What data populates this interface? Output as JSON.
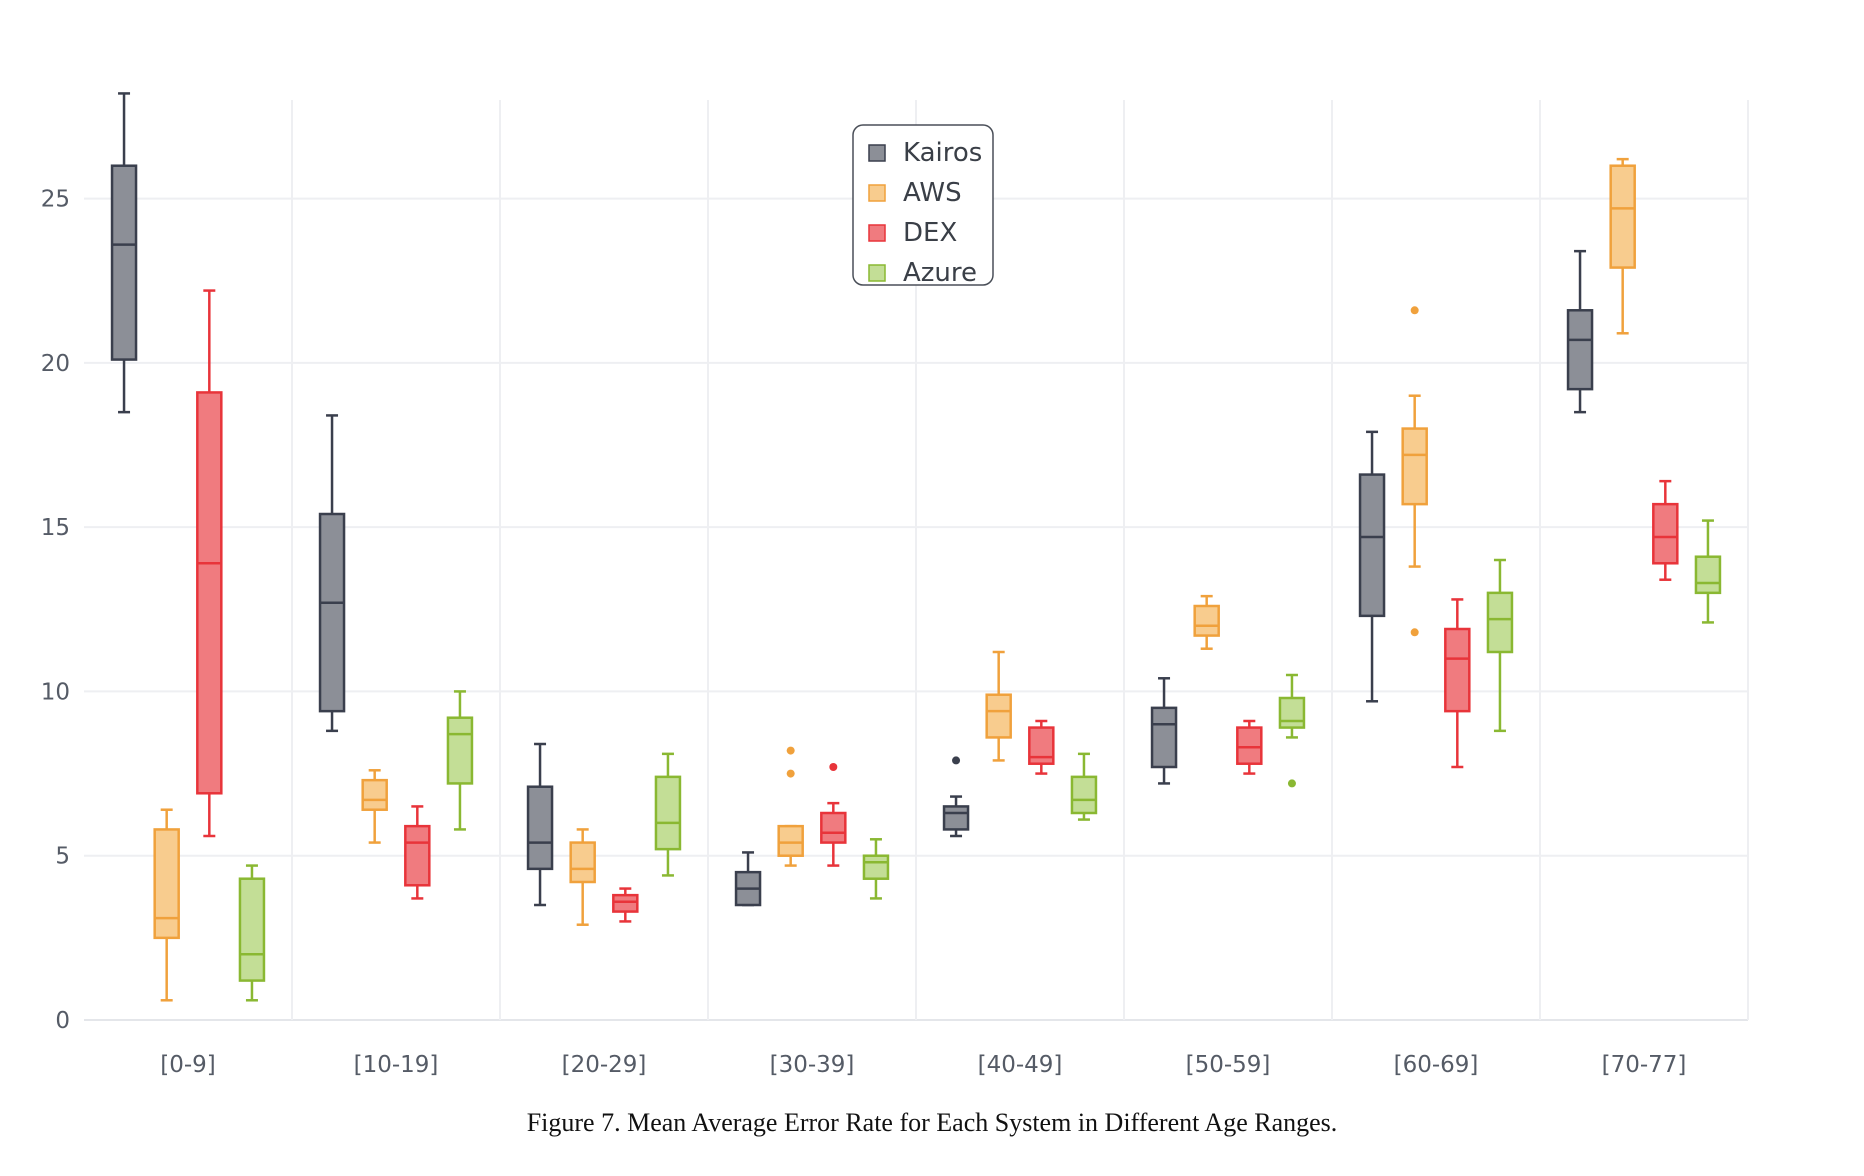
{
  "caption": "Figure 7. Mean Average Error Rate for Each System in Different Age Ranges.",
  "chart_data": {
    "type": "box",
    "title": "",
    "xlabel": "",
    "ylabel": "",
    "ylim": [
      0,
      28
    ],
    "yticks": [
      0,
      5,
      10,
      15,
      20,
      25
    ],
    "grid": true,
    "legend_position": "top-center",
    "categories": [
      "[0-9]",
      "[10-19]",
      "[20-29]",
      "[30-39]",
      "[40-49]",
      "[50-59]",
      "[60-69]",
      "[70-77]"
    ],
    "series": [
      {
        "name": "Kairos",
        "color": "#3a3f4d",
        "fill": "#8c8f97",
        "boxes": [
          {
            "min": 18.5,
            "q1": 20.1,
            "median": 23.6,
            "q3": 26.0,
            "max": 28.2,
            "outliers": []
          },
          {
            "min": 8.8,
            "q1": 9.4,
            "median": 12.7,
            "q3": 15.4,
            "max": 18.4,
            "outliers": []
          },
          {
            "min": 3.5,
            "q1": 4.6,
            "median": 5.4,
            "q3": 7.1,
            "max": 8.4,
            "outliers": []
          },
          {
            "min": 3.5,
            "q1": 3.5,
            "median": 4.0,
            "q3": 4.5,
            "max": 5.1,
            "outliers": []
          },
          {
            "min": 5.6,
            "q1": 5.8,
            "median": 6.3,
            "q3": 6.5,
            "max": 6.8,
            "outliers": [
              7.9
            ]
          },
          {
            "min": 7.2,
            "q1": 7.7,
            "median": 9.0,
            "q3": 9.5,
            "max": 10.4,
            "outliers": []
          },
          {
            "min": 9.7,
            "q1": 12.3,
            "median": 14.7,
            "q3": 16.6,
            "max": 17.9,
            "outliers": []
          },
          {
            "min": 18.5,
            "q1": 19.2,
            "median": 20.7,
            "q3": 21.6,
            "max": 23.4,
            "outliers": []
          }
        ]
      },
      {
        "name": "AWS",
        "color": "#f0a13c",
        "fill": "#f8cc8e",
        "boxes": [
          {
            "min": 0.6,
            "q1": 2.5,
            "median": 3.1,
            "q3": 5.8,
            "max": 6.4,
            "outliers": []
          },
          {
            "min": 5.4,
            "q1": 6.4,
            "median": 6.7,
            "q3": 7.3,
            "max": 7.6,
            "outliers": []
          },
          {
            "min": 2.9,
            "q1": 4.2,
            "median": 4.6,
            "q3": 5.4,
            "max": 5.8,
            "outliers": []
          },
          {
            "min": 4.7,
            "q1": 5.0,
            "median": 5.4,
            "q3": 5.9,
            "max": 5.9,
            "outliers": [
              7.5,
              8.2
            ]
          },
          {
            "min": 7.9,
            "q1": 8.6,
            "median": 9.4,
            "q3": 9.9,
            "max": 11.2,
            "outliers": []
          },
          {
            "min": 11.3,
            "q1": 11.7,
            "median": 12.0,
            "q3": 12.6,
            "max": 12.9,
            "outliers": []
          },
          {
            "min": 13.8,
            "q1": 15.7,
            "median": 17.2,
            "q3": 18.0,
            "max": 19.0,
            "outliers": [
              11.8,
              21.6
            ]
          },
          {
            "min": 20.9,
            "q1": 22.9,
            "median": 24.7,
            "q3": 26.0,
            "max": 26.2,
            "outliers": []
          }
        ]
      },
      {
        "name": "DEX",
        "color": "#e8343a",
        "fill": "#f07b7f",
        "boxes": [
          {
            "min": 5.6,
            "q1": 6.9,
            "median": 13.9,
            "q3": 19.1,
            "max": 22.2,
            "outliers": []
          },
          {
            "min": 3.7,
            "q1": 4.1,
            "median": 5.4,
            "q3": 5.9,
            "max": 6.5,
            "outliers": []
          },
          {
            "min": 3.0,
            "q1": 3.3,
            "median": 3.6,
            "q3": 3.8,
            "max": 4.0,
            "outliers": []
          },
          {
            "min": 4.7,
            "q1": 5.4,
            "median": 5.7,
            "q3": 6.3,
            "max": 6.6,
            "outliers": [
              7.7
            ]
          },
          {
            "min": 7.5,
            "q1": 7.8,
            "median": 8.0,
            "q3": 8.9,
            "max": 9.1,
            "outliers": []
          },
          {
            "min": 7.5,
            "q1": 7.8,
            "median": 8.3,
            "q3": 8.9,
            "max": 9.1,
            "outliers": []
          },
          {
            "min": 7.7,
            "q1": 9.4,
            "median": 11.0,
            "q3": 11.9,
            "max": 12.8,
            "outliers": []
          },
          {
            "min": 13.4,
            "q1": 13.9,
            "median": 14.7,
            "q3": 15.7,
            "max": 16.4,
            "outliers": []
          }
        ]
      },
      {
        "name": "Azure",
        "color": "#8ab832",
        "fill": "#c3de96",
        "boxes": [
          {
            "min": 0.6,
            "q1": 1.2,
            "median": 2.0,
            "q3": 4.3,
            "max": 4.7,
            "outliers": []
          },
          {
            "min": 5.8,
            "q1": 7.2,
            "median": 8.7,
            "q3": 9.2,
            "max": 10.0,
            "outliers": []
          },
          {
            "min": 4.4,
            "q1": 5.2,
            "median": 6.0,
            "q3": 7.4,
            "max": 8.1,
            "outliers": []
          },
          {
            "min": 3.7,
            "q1": 4.3,
            "median": 4.8,
            "q3": 5.0,
            "max": 5.5,
            "outliers": []
          },
          {
            "min": 6.1,
            "q1": 6.3,
            "median": 6.7,
            "q3": 7.4,
            "max": 8.1,
            "outliers": []
          },
          {
            "min": 8.6,
            "q1": 8.9,
            "median": 9.1,
            "q3": 9.8,
            "max": 10.5,
            "outliers": [
              7.2
            ]
          },
          {
            "min": 8.8,
            "q1": 11.2,
            "median": 12.2,
            "q3": 13.0,
            "max": 14.0,
            "outliers": []
          },
          {
            "min": 12.1,
            "q1": 13.0,
            "median": 13.3,
            "q3": 14.1,
            "max": 15.2,
            "outliers": []
          }
        ]
      }
    ]
  }
}
